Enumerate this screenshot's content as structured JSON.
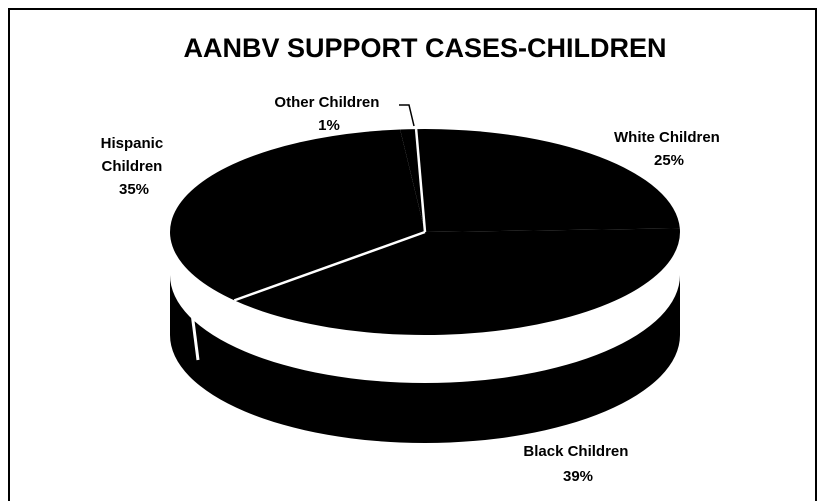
{
  "chart_data": {
    "type": "pie",
    "title": "AANBV SUPPORT CASES-CHILDREN",
    "slices": [
      {
        "label_lines": [
          "White Children",
          "25%"
        ],
        "value": 25
      },
      {
        "label_lines": [
          "Black Children",
          "39%"
        ],
        "value": 39
      },
      {
        "label_lines": [
          "Hispanic",
          "Children",
          "35%"
        ],
        "value": 35
      },
      {
        "label_lines": [
          "Other Children",
          "1%"
        ],
        "value": 1
      }
    ],
    "style": "3d",
    "slice_color": "#000000",
    "separator_color": "#ffffff",
    "legend": "none"
  }
}
